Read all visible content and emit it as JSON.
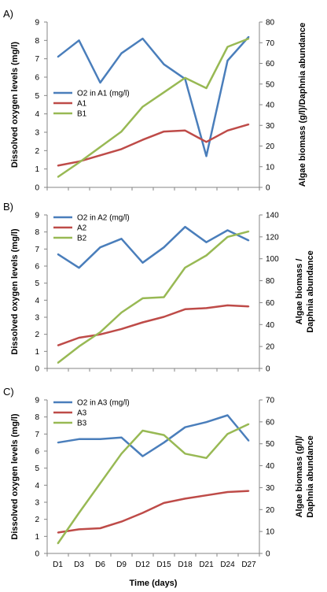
{
  "colors": {
    "o2": "#4a7ebb",
    "algae": "#be4b48",
    "daphnia": "#98b954"
  },
  "x_axis_label": "Time (days)",
  "chart_data": [
    {
      "type": "line",
      "panel": "A)",
      "categories": [
        "D1",
        "D3",
        "D6",
        "D9",
        "D12",
        "D15",
        "D18",
        "D21",
        "D24",
        "D27"
      ],
      "ylabel_left": "Dissolved oxygen levels (mg/l)",
      "ylabel_right": "Algae biomass (g/l)/Daphnia abundance",
      "ylim_left": [
        0,
        9
      ],
      "ylim_right": [
        0,
        80
      ],
      "yticks_left": [
        0,
        1,
        2,
        3,
        4,
        5,
        6,
        7,
        8,
        9
      ],
      "yticks_right": [
        0,
        10,
        20,
        30,
        40,
        50,
        60,
        70,
        80
      ],
      "series": [
        {
          "name": "O2 in A1 (mg/l)",
          "axis": "left",
          "color": "o2",
          "values": [
            7.1,
            8.0,
            5.7,
            7.3,
            8.1,
            6.7,
            5.9,
            1.7,
            6.9,
            8.2
          ]
        },
        {
          "name": "A1",
          "axis": "right",
          "color": "algae",
          "values": [
            10.5,
            12.5,
            15.5,
            18.5,
            23,
            27,
            27.5,
            22,
            27.5,
            30.5
          ]
        },
        {
          "name": "B1",
          "axis": "right",
          "color": "daphnia",
          "values": [
            5,
            12,
            19.5,
            27,
            39,
            46,
            53,
            48,
            68,
            72
          ]
        }
      ]
    },
    {
      "type": "line",
      "panel": "B)",
      "categories": [
        "D1",
        "D3",
        "D6",
        "D9",
        "D12",
        "D15",
        "D18",
        "D21",
        "D24",
        "D27"
      ],
      "ylabel_left": "Dissolved oxygen levels (mg/l)",
      "ylabel_right": "Algae biomass /Daphnia abundance",
      "ylim_left": [
        0,
        9
      ],
      "ylim_right": [
        0,
        140
      ],
      "yticks_left": [
        0,
        1,
        2,
        3,
        4,
        5,
        6,
        7,
        8,
        9
      ],
      "yticks_right": [
        0,
        20,
        40,
        60,
        80,
        100,
        120,
        140
      ],
      "series": [
        {
          "name": "O2 in A2 (mg/l)",
          "axis": "left",
          "color": "o2",
          "values": [
            6.7,
            5.9,
            7.1,
            7.6,
            6.2,
            7.1,
            8.3,
            7.4,
            8.1,
            7.5
          ]
        },
        {
          "name": "A2",
          "axis": "right",
          "color": "algae",
          "values": [
            21,
            28,
            31,
            36,
            42,
            47,
            54,
            55,
            57.5,
            56.5
          ]
        },
        {
          "name": "B2",
          "axis": "right",
          "color": "daphnia",
          "values": [
            5,
            20,
            33,
            51,
            64,
            65,
            92,
            103,
            120,
            125
          ]
        }
      ]
    },
    {
      "type": "line",
      "panel": "C)",
      "categories": [
        "D1",
        "D3",
        "D6",
        "D9",
        "D12",
        "D15",
        "D18",
        "D21",
        "D24",
        "D27"
      ],
      "ylabel_left": "Dissolved oxygen levels  (mg/l)",
      "ylabel_right": "Algae biomass (g/l)/Daphnia abundance",
      "ylim_left": [
        0,
        9
      ],
      "ylim_right": [
        0,
        70
      ],
      "yticks_left": [
        0,
        1,
        2,
        3,
        4,
        5,
        6,
        7,
        8,
        9
      ],
      "yticks_right": [
        0,
        10,
        20,
        30,
        40,
        50,
        60,
        70
      ],
      "series": [
        {
          "name": "O2 in A3 (mg/l)",
          "axis": "left",
          "color": "o2",
          "values": [
            6.5,
            6.7,
            6.7,
            6.8,
            5.7,
            6.5,
            7.4,
            7.7,
            8.1,
            6.6
          ]
        },
        {
          "name": "A3",
          "axis": "right",
          "color": "algae",
          "values": [
            9.5,
            11,
            11.5,
            14.5,
            18.5,
            23,
            25,
            26.5,
            28,
            28.5
          ]
        },
        {
          "name": "B3",
          "axis": "right",
          "color": "daphnia",
          "values": [
            4.5,
            18.5,
            32,
            45.5,
            56,
            54,
            45.5,
            43.5,
            54.5,
            59
          ]
        }
      ]
    }
  ]
}
